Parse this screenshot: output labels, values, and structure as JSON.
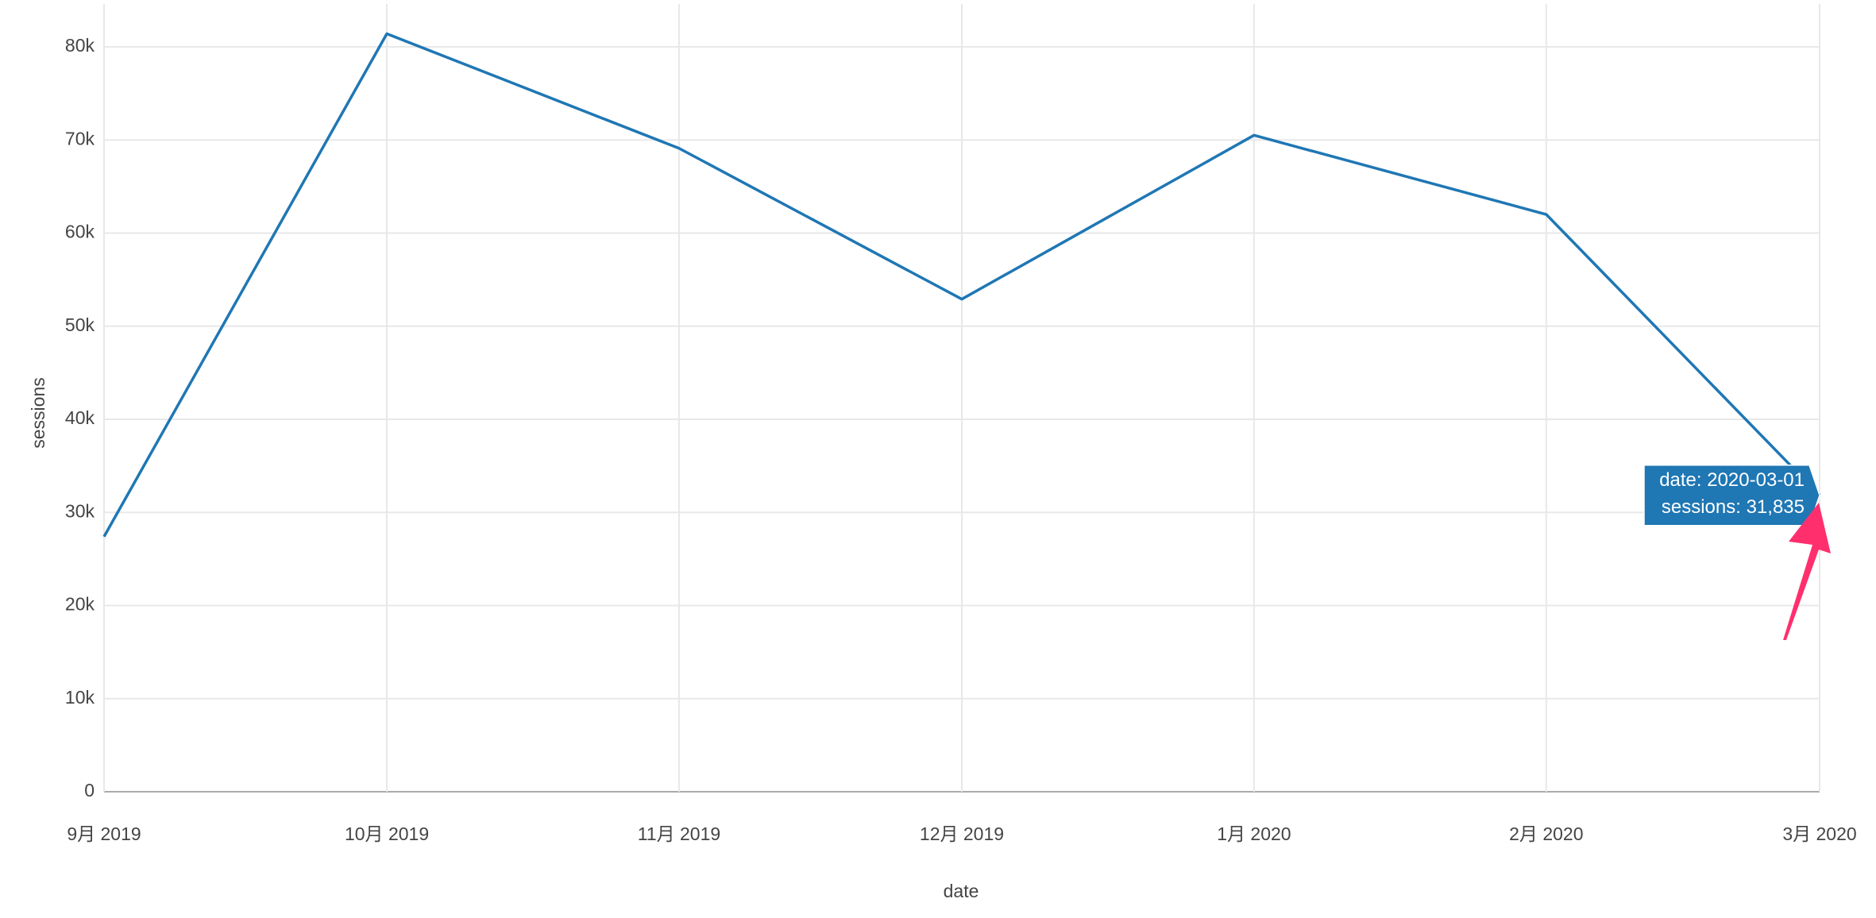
{
  "chart_data": {
    "type": "line",
    "x_label": "date",
    "y_label": "sessions",
    "x": [
      "2019-09-01",
      "2019-10-01",
      "2019-11-01",
      "2019-12-01",
      "2020-01-01",
      "2020-02-01",
      "2020-03-01"
    ],
    "series": [
      {
        "name": "sessions",
        "color": "#1f77b4",
        "values": [
          27400,
          81400,
          69100,
          52900,
          70500,
          62000,
          31835
        ]
      }
    ],
    "xlim": [
      "2019-09-01",
      "2020-03-01"
    ],
    "xticks": [
      {
        "value": "2019-09-01",
        "label": "9月 2019"
      },
      {
        "value": "2019-10-01",
        "label": "10月 2019"
      },
      {
        "value": "2019-11-01",
        "label": "11月 2019"
      },
      {
        "value": "2019-12-01",
        "label": "12月 2019"
      },
      {
        "value": "2020-01-01",
        "label": "1月 2020"
      },
      {
        "value": "2020-02-01",
        "label": "2月 2020"
      },
      {
        "value": "2020-03-01",
        "label": "3月 2020"
      }
    ],
    "ylim": [
      0,
      84600
    ],
    "yticks": [
      0,
      {
        "value": 10000,
        "label": "10k"
      },
      {
        "value": 20000,
        "label": "20k"
      },
      {
        "value": 30000,
        "label": "30k"
      },
      {
        "value": 40000,
        "label": "40k"
      },
      {
        "value": 50000,
        "label": "50k"
      },
      {
        "value": 60000,
        "label": "60k"
      },
      {
        "value": 70000,
        "label": "70k"
      },
      {
        "value": 80000,
        "label": "80k"
      }
    ],
    "grid": true,
    "tooltip": [
      "date: 2020-03-01",
      "sessions: 31,835"
    ]
  }
}
